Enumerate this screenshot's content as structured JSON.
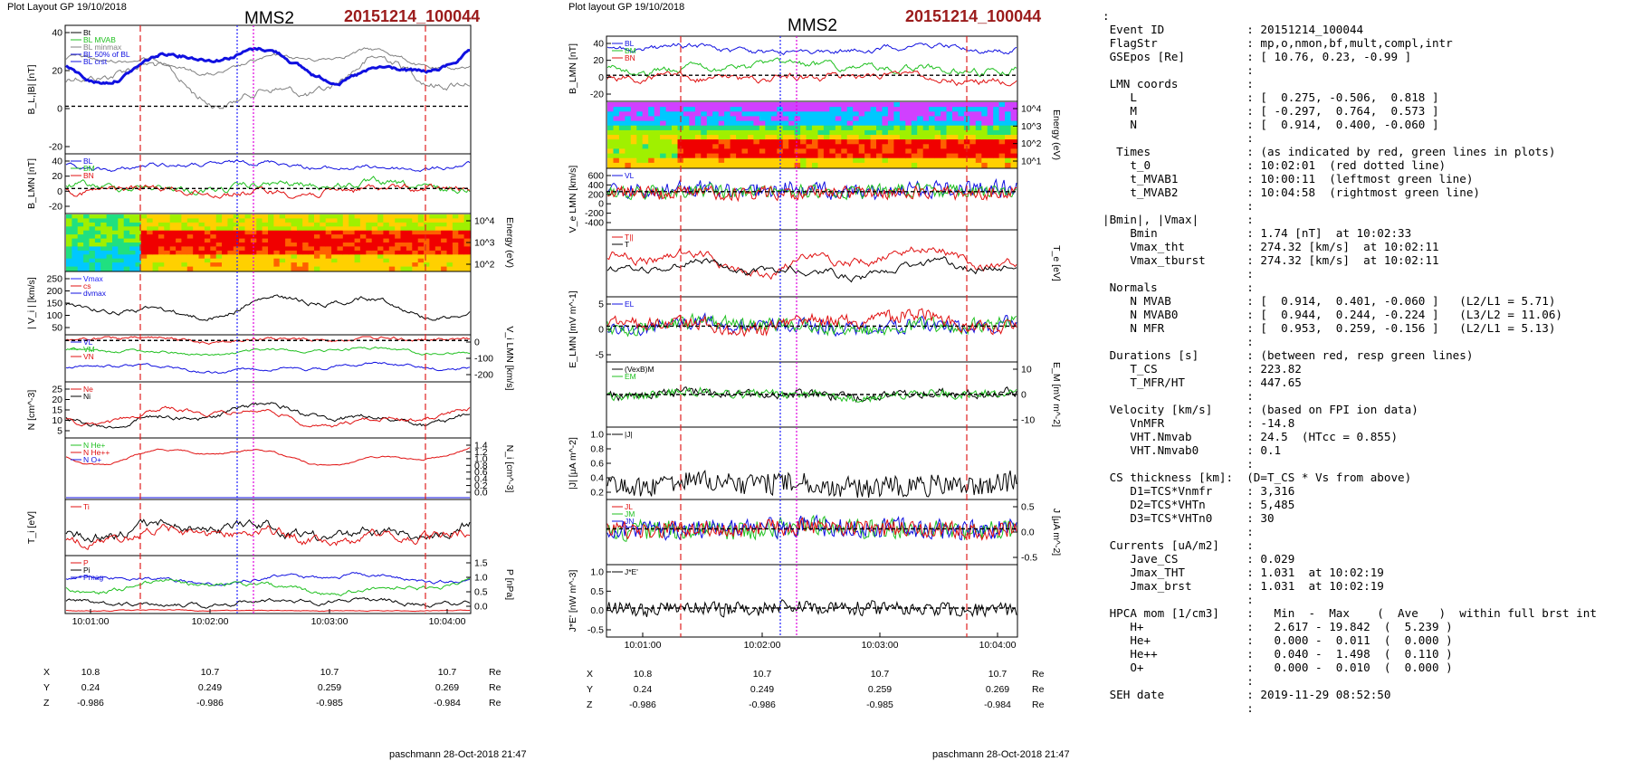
{
  "left_panel": {
    "header": "Plot Layout GP 19/10/2018",
    "spacecraft": "MMS2",
    "event": "20151214_100044",
    "footer": "paschmann 28-Oct-2018 21:47",
    "panels": [
      {
        "id": "L1",
        "ylabel": "B_L,|B| [nT]",
        "ticks": [
          "40",
          "20",
          "0",
          "-20"
        ],
        "tick_side": "left",
        "legend": [
          "Bt",
          "BL MVAB",
          "BL minmax",
          "BL 50% of BL",
          "BL crst"
        ]
      },
      {
        "id": "L2",
        "ylabel": "B_LMN [nT]",
        "ticks": [
          "40",
          "20",
          "0",
          "-20"
        ],
        "tick_side": "left",
        "legend": [
          "BL",
          "BM",
          "BN"
        ]
      },
      {
        "id": "L3",
        "ylabel": "Energy (eV)",
        "ticks": [
          "10^4",
          "10^3",
          "10^2"
        ],
        "tick_side": "right",
        "legend": []
      },
      {
        "id": "L4",
        "ylabel": "| V_i | [km/s]",
        "ticks": [
          "250",
          "200",
          "150",
          "100",
          "50"
        ],
        "tick_side": "left",
        "legend": [
          "Vmax",
          "cs",
          "dvmax"
        ]
      },
      {
        "id": "L5",
        "ylabel": "V_i LMN [km/s]",
        "ticks": [
          "0",
          "-100",
          "-200"
        ],
        "tick_side": "right",
        "legend": [
          "VL",
          "VM",
          "VN"
        ]
      },
      {
        "id": "L6",
        "ylabel": "N [cm^-3]",
        "ticks": [
          "25",
          "20",
          "15",
          "10",
          "5"
        ],
        "tick_side": "left",
        "legend": [
          "Ne",
          "Ni"
        ]
      },
      {
        "id": "L7",
        "ylabel": "N_i [cm^-3]",
        "ticks": [
          "1.4",
          "1.2",
          "1.0",
          "0.8",
          "0.6",
          "0.4",
          "0.2",
          "0.0"
        ],
        "tick_side": "right",
        "legend": [
          "N He+",
          "N He++",
          "N O+"
        ]
      },
      {
        "id": "L8",
        "ylabel": "T_i [eV]",
        "ticks": [],
        "tick_side": "left",
        "legend": [
          "Ti"
        ]
      },
      {
        "id": "L9",
        "ylabel": "P [nPa]",
        "ticks": [
          "1.5",
          "1.0",
          "0.5",
          "0.0"
        ],
        "tick_side": "right",
        "legend": [
          "P",
          "Pi",
          "Pmag"
        ]
      }
    ],
    "x_ticks": [
      "10:01:00",
      "10:02:00",
      "10:03:00",
      "10:04:00"
    ],
    "pos_table": {
      "rows": [
        {
          "label": "X",
          "values": [
            "10.8",
            "10.7",
            "10.7",
            "10.7"
          ],
          "unit": "Re"
        },
        {
          "label": "Y",
          "values": [
            "0.24",
            "0.249",
            "0.259",
            "0.269"
          ],
          "unit": "Re"
        },
        {
          "label": "Z",
          "values": [
            "-0.986",
            "-0.986",
            "-0.985",
            "-0.984"
          ],
          "unit": "Re"
        }
      ]
    }
  },
  "mid_panel": {
    "header": "Plot layout GP 19/10/2018",
    "spacecraft": "MMS2",
    "event": "20151214_100044",
    "footer": "paschmann 28-Oct-2018 21:47",
    "panels": [
      {
        "id": "M1",
        "ylabel": "B_LMN [nT]",
        "ticks": [
          "40",
          "20",
          "0",
          "-20"
        ],
        "tick_side": "left",
        "legend": [
          "BL",
          "BM",
          "BN"
        ]
      },
      {
        "id": "M2",
        "ylabel": "Energy (eV)",
        "ticks": [
          "10^4",
          "10^3",
          "10^2",
          "10^1"
        ],
        "tick_side": "right",
        "legend": []
      },
      {
        "id": "M3",
        "ylabel": "V_e LMN [km/s]",
        "ticks": [
          "600",
          "400",
          "200",
          "0",
          "-200",
          "-400"
        ],
        "tick_side": "left",
        "legend": [
          "VL"
        ]
      },
      {
        "id": "M4",
        "ylabel": "T_e [eV]",
        "ticks": [],
        "tick_side": "right",
        "legend": [
          "T||",
          "T"
        ]
      },
      {
        "id": "M5",
        "ylabel": "E_LMN [mV m^-1]",
        "ticks": [
          "5",
          "0",
          "-5"
        ],
        "tick_side": "left",
        "legend": [
          "EL"
        ]
      },
      {
        "id": "M6",
        "ylabel": "E_M [mV m^-2]",
        "ticks": [
          "10",
          "0",
          "-10"
        ],
        "tick_side": "right",
        "legend": [
          "(VexB)M",
          "EM"
        ]
      },
      {
        "id": "M7",
        "ylabel": "|J| [μA m^-2]",
        "ticks": [
          "1.0",
          "0.8",
          "0.6",
          "0.4",
          "0.2"
        ],
        "tick_side": "left",
        "legend": [
          "|J|"
        ]
      },
      {
        "id": "M8",
        "ylabel": "J [μA m^-2]",
        "ticks": [
          "0.5",
          "0.0",
          "-0.5"
        ],
        "tick_side": "right",
        "legend": [
          "JL",
          "JM",
          "JN"
        ]
      },
      {
        "id": "M9",
        "ylabel": "J*E' [nW m^-3]",
        "ticks": [
          "1.0",
          "0.5",
          "0.0",
          "-0.5"
        ],
        "tick_side": "left",
        "legend": [
          "J*E'"
        ]
      }
    ],
    "x_ticks": [
      "10:01:00",
      "10:02:00",
      "10:03:00",
      "10:04:00"
    ],
    "pos_table": {
      "rows": [
        {
          "label": "X",
          "values": [
            "10.8",
            "10.7",
            "10.7",
            "10.7"
          ],
          "unit": "Re"
        },
        {
          "label": "Y",
          "values": [
            "0.24",
            "0.249",
            "0.259",
            "0.269"
          ],
          "unit": "Re"
        },
        {
          "label": "Z",
          "values": [
            "-0.986",
            "-0.986",
            "-0.985",
            "-0.984"
          ],
          "unit": "Re"
        }
      ]
    }
  },
  "info_lines": [
    ":",
    " Event ID            : 20151214_100044",
    " FlagStr             : mp,o,nmon,bf,mult,compl,intr",
    " GSEpos [Re]         : [ 10.76, 0.23, -0.99 ]",
    "                     :",
    " LMN coords          :",
    "    L                : [  0.275, -0.506,  0.818 ]",
    "    M                : [ -0.297,  0.764,  0.573 ]",
    "    N                : [  0.914,  0.400, -0.060 ]",
    "                     :",
    "  Times              : (as indicated by red, green lines in plots)",
    "    t_0              : 10:02:01  (red dotted line)",
    "    t_MVAB1          : 10:00:11  (leftmost green line)",
    "    t_MVAB2          : 10:04:58  (rightmost green line)",
    "                     :",
    "|Bmin|, |Vmax|       :",
    "    Bmin             : 1.74 [nT]  at 10:02:33",
    "    Vmax_tht         : 274.32 [km/s]  at 10:02:11",
    "    Vmax_tburst      : 274.32 [km/s]  at 10:02:11",
    "                     :",
    " Normals             :",
    "    N MVAB           : [  0.914,  0.401, -0.060 ]   (L2/L1 = 5.71)",
    "    N MVAB0          : [  0.944,  0.244, -0.224 ]   (L3/L2 = 11.06)",
    "    N MFR            : [  0.953,  0.259, -0.156 ]   (L2/L1 = 5.13)",
    "                     :",
    " Durations [s]       : (between red, resp green lines)",
    "    T_CS             : 223.82",
    "    T_MFR/HT         : 447.65",
    "                     :",
    " Velocity [km/s]     : (based on FPI ion data)",
    "    VnMFR            : -14.8",
    "    VHT.Nmvab        : 24.5  (HTcc = 0.855)",
    "    VHT.Nmvab0       : 0.1",
    "                     :",
    " CS thickness [km]:  (D=T_CS * Vs from above)",
    "    D1=TCS*Vnmfr     : 3,316",
    "    D2=TCS*VHTn      : 5,485",
    "    D3=TCS*VHTn0     : 30",
    "                     :",
    " Currents [uA/m2]    :",
    "    Jave_CS          : 0.029",
    "    Jmax_THT         : 1.031  at 10:02:19",
    "    Jmax_brst        : 1.031  at 10:02:19",
    "                     :",
    " HPCA mom [1/cm3]    :   Min  -  Max    (  Ave   )  within full brst int",
    "    H+               :   2.617 - 19.842  (  5.239 )",
    "    He+              :   0.000 -  0.011  (  0.000 )",
    "    He++             :   0.040 -  1.498  (  0.110 )",
    "    O+               :   0.000 -  0.010  (  0.000 )",
    "                     :",
    " SEH date            : 2019-11-29 08:52:50",
    "                     :"
  ],
  "colors": {
    "event_red": "#9b1b1b",
    "marker_red": "#e02020",
    "marker_blue": "#2020ff",
    "marker_magenta": "#e000e0",
    "trace_black": "#000000",
    "trace_blue": "#1010e0",
    "trace_green": "#20c020",
    "trace_red": "#e01010",
    "trace_gray": "#808080"
  }
}
